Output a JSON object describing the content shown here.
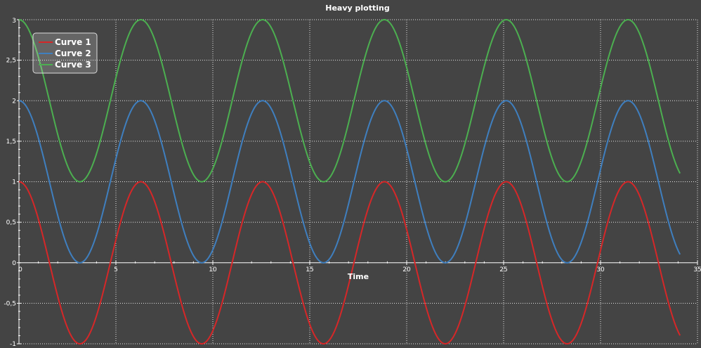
{
  "chart_data": {
    "type": "line",
    "title": "Heavy plotting",
    "xlabel": "Time",
    "ylabel": "",
    "xlim": [
      0,
      35
    ],
    "ylim": [
      -1,
      3
    ],
    "xticks": [
      0,
      5,
      10,
      15,
      20,
      25,
      30,
      35
    ],
    "yticks": [
      -1,
      -0.5,
      0,
      0.5,
      1,
      1.5,
      2,
      2.5,
      3
    ],
    "xtick_labels": [
      "0",
      "5",
      "10",
      "15",
      "20",
      "25",
      "30",
      "35"
    ],
    "ytick_labels": [
      "-1",
      "-0,5",
      "0",
      "0,5",
      "1",
      "1,5",
      "2",
      "2,5",
      "3"
    ],
    "grid": true,
    "legend_position": "top-left",
    "x_range": [
      0,
      34.1
    ],
    "series": [
      {
        "name": "Curve 1",
        "color": "#d62728",
        "function": "cos(x)",
        "offset": 0
      },
      {
        "name": "Curve 2",
        "color": "#3f7fbf",
        "function": "cos(x) + 1",
        "offset": 1
      },
      {
        "name": "Curve 3",
        "color": "#4caf50",
        "function": "cos(x) + 2",
        "offset": 2
      }
    ],
    "colors": {
      "background": "#444444",
      "axis": "#ffffff",
      "grid": "#e6e6e6",
      "text": "#ffffff"
    }
  }
}
